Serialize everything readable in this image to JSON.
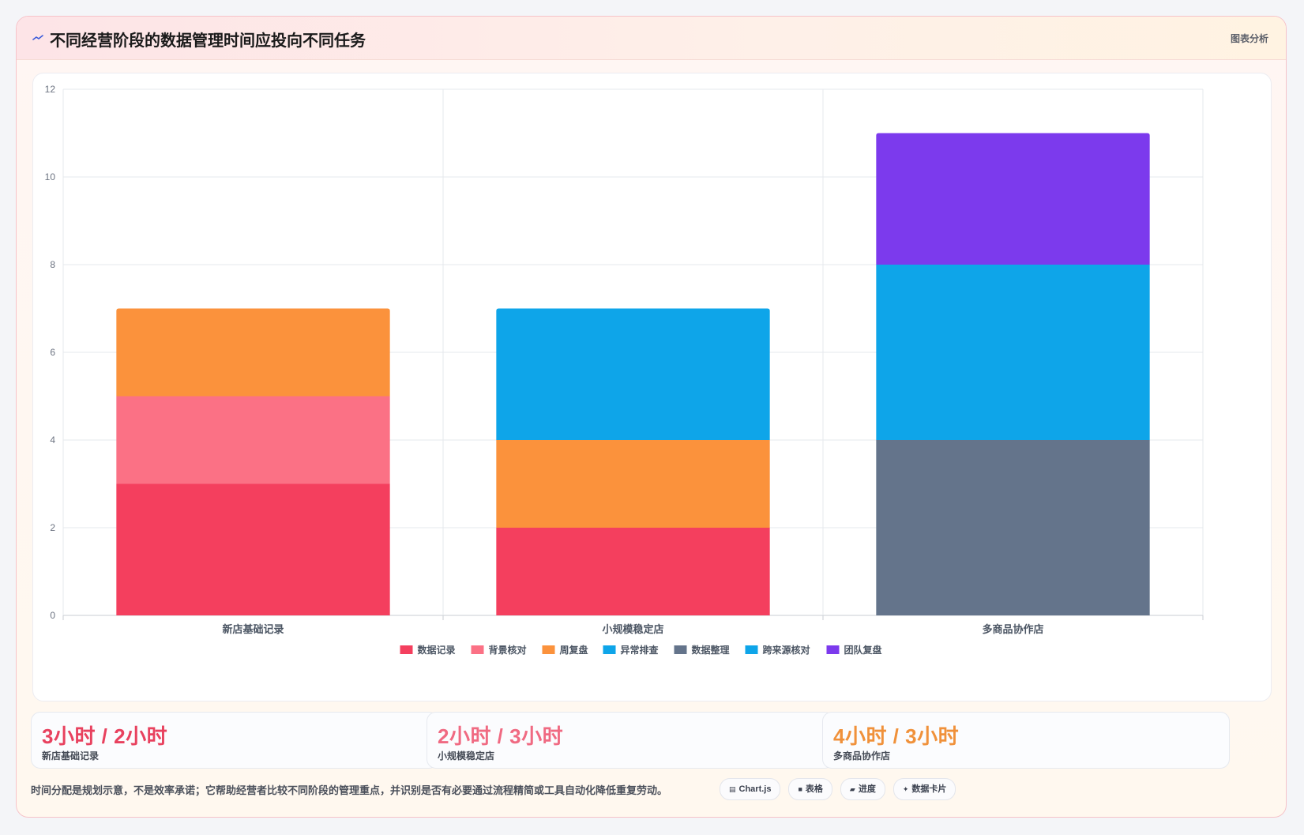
{
  "header": {
    "title": "不同经营阶段的数据管理时间应投向不同任务",
    "badge": "图表分析"
  },
  "chart_data": {
    "type": "bar",
    "stacked": true,
    "categories": [
      "新店基础记录",
      "小规模稳定店",
      "多商品协作店"
    ],
    "ylim": [
      0,
      12
    ],
    "yticks": [
      0,
      2,
      4,
      6,
      8,
      10,
      12
    ],
    "grid": true,
    "legend_position": "bottom",
    "series": [
      {
        "name": "数据记录",
        "color": "#f43f5e",
        "values": [
          3,
          2,
          0
        ]
      },
      {
        "name": "背景核对",
        "color": "#fb7185",
        "values": [
          2,
          0,
          0
        ]
      },
      {
        "name": "周复盘",
        "color": "#fb923c",
        "values": [
          2,
          2,
          0
        ]
      },
      {
        "name": "异常排查",
        "color": "#0ea5e9",
        "values": [
          0,
          3,
          0
        ]
      },
      {
        "name": "数据整理",
        "color": "#64748b",
        "values": [
          0,
          0,
          4
        ]
      },
      {
        "name": "跨来源核对",
        "color": "#0ea5e9",
        "values": [
          0,
          0,
          4
        ]
      },
      {
        "name": "团队复盘",
        "color": "#7c3aed",
        "values": [
          0,
          0,
          3
        ]
      }
    ]
  },
  "stats": [
    {
      "value": "3小时 / 2小时",
      "label": "新店基础记录",
      "color": "#e8415e"
    },
    {
      "value": "2小时 / 3小时",
      "label": "小规模稳定店",
      "color": "#f06a82"
    },
    {
      "value": "4小时 / 3小时",
      "label": "多商品协作店",
      "color": "#f0913a"
    }
  ],
  "footnote": "时间分配是规划示意，不是效率承诺；它帮助经营者比较不同阶段的管理重点，并识别是否有必要通过流程精简或工具自动化降低重复劳动。",
  "tags": [
    {
      "icon": "chart-icon",
      "glyph": "▤",
      "label": "Chart.js"
    },
    {
      "icon": "table-icon",
      "glyph": "■",
      "label": "表格"
    },
    {
      "icon": "progress-icon",
      "glyph": "▰",
      "label": "进度"
    },
    {
      "icon": "sparkle-icon",
      "glyph": "✦",
      "label": "数据卡片"
    }
  ]
}
